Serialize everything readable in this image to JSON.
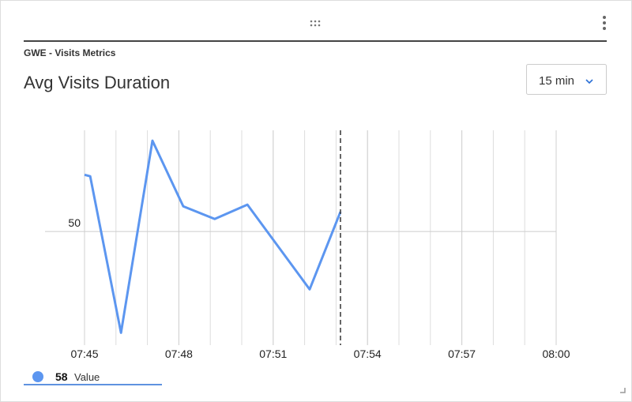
{
  "widget": {
    "group": "GWE - Visits Metrics",
    "title": "Avg Visits Duration",
    "range": "15 min"
  },
  "chart_data": {
    "type": "line",
    "x": [
      0,
      0.18,
      1.16,
      2.16,
      3.14,
      4.14,
      5.18,
      7.16,
      8.14
    ],
    "series": [
      {
        "name": "Value",
        "color": "#5c96f0",
        "values": [
          73,
          72.4,
          9,
          86.8,
          60.2,
          55.1,
          60.9,
          26.6,
          58
        ]
      }
    ],
    "xlim": [
      0,
      15
    ],
    "xticks": [
      {
        "value": 0,
        "label": "07:45"
      },
      {
        "value": 3,
        "label": "07:48"
      },
      {
        "value": 6,
        "label": "07:51"
      },
      {
        "value": 9,
        "label": "07:54"
      },
      {
        "value": 12,
        "label": "07:57"
      },
      {
        "value": 15,
        "label": "08:00"
      }
    ],
    "ylim": [
      4,
      91
    ],
    "yticks": [
      50
    ],
    "grid": true
  }
}
